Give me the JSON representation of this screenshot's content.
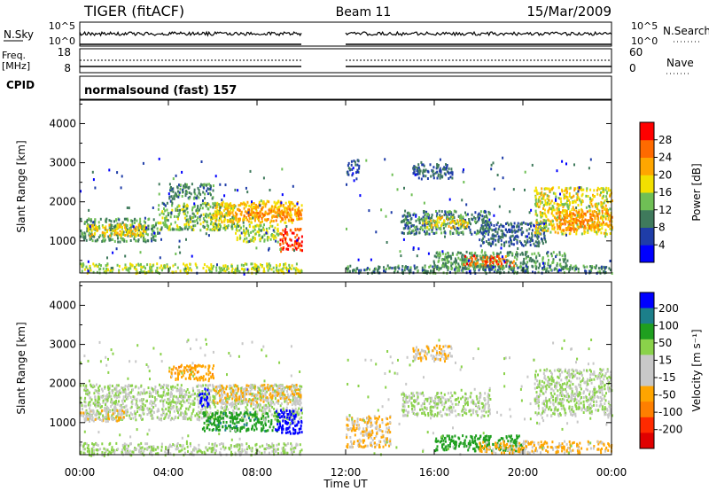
{
  "header": {
    "radar": "TIGER (fitACF)",
    "beam": "Beam 11",
    "date": "15/Mar/2009",
    "program": "normalsound (fast) 157"
  },
  "side_labels": {
    "nsky": "N.Sky",
    "nsearch": "N.Search",
    "freq_line1": "Freq.",
    "freq_line2": "[MHz]",
    "cpid": "CPID",
    "nave": "Nave",
    "nsky_top": "10^5",
    "nsky_bottom": "10^0",
    "freq_top": "18",
    "freq_bottom": "8",
    "nave_top": "60",
    "nave_bottom": "0"
  },
  "colors": {
    "power_scale": [
      "#0000ff",
      "#1f3da8",
      "#3f7a5c",
      "#6fbf55",
      "#f2e000",
      "#ffa600",
      "#ff6a00",
      "#ff0000"
    ],
    "velocity_scale": [
      "#0000ff",
      "#1c7f8a",
      "#1f9f1f",
      "#8ad24a",
      "#c8c8c8",
      "#c8c8c8",
      "#ffa500",
      "#ff7f00",
      "#ff2a00",
      "#e00000"
    ]
  },
  "chart_data": [
    {
      "type": "heatmap",
      "panel": "power",
      "ylabel": "Slant Range [km]",
      "ylim": [
        180,
        4600
      ],
      "yticks": [
        "1000",
        "2000",
        "3000",
        "4000"
      ],
      "yticks_values": [
        1000,
        2000,
        3000,
        4000
      ],
      "xlabel": "Time UT",
      "xticks": [
        "00:00",
        "04:00",
        "08:00",
        "12:00",
        "16:00",
        "20:00",
        "00:00"
      ],
      "xticks_hours": [
        0,
        4,
        8,
        12,
        16,
        20,
        24
      ],
      "data_gap_hours": [
        10,
        12
      ],
      "colorbar": {
        "label": "Power [dB]",
        "ticks": [
          "4",
          "8",
          "12",
          "16",
          "20",
          "24",
          "28"
        ],
        "tick_values": [
          4,
          8,
          12,
          16,
          20,
          24,
          28
        ],
        "range": [
          0,
          32
        ]
      },
      "regions": [
        {
          "t0": 0.0,
          "t1": 10.0,
          "r0": 200,
          "r1": 450,
          "level": 16
        },
        {
          "t0": 0.0,
          "t1": 3.5,
          "r0": 1000,
          "r1": 1600,
          "level": 12
        },
        {
          "t0": 0.3,
          "t1": 3.0,
          "r0": 1150,
          "r1": 1450,
          "level": 20
        },
        {
          "t0": 3.5,
          "t1": 7.0,
          "r0": 1300,
          "r1": 2000,
          "level": 14
        },
        {
          "t0": 6.0,
          "t1": 10.0,
          "r0": 1500,
          "r1": 2050,
          "level": 20
        },
        {
          "t0": 7.0,
          "t1": 10.0,
          "r0": 1550,
          "r1": 1850,
          "level": 24
        },
        {
          "t0": 9.0,
          "t1": 10.0,
          "r0": 750,
          "r1": 1350,
          "level": 28
        },
        {
          "t0": 7.0,
          "t1": 9.0,
          "r0": 1000,
          "r1": 1450,
          "level": 16
        },
        {
          "t0": 4.0,
          "t1": 6.0,
          "r0": 2100,
          "r1": 2500,
          "level": 10
        },
        {
          "t0": 12.0,
          "t1": 12.6,
          "r0": 2700,
          "r1": 3100,
          "level": 6
        },
        {
          "t0": 15.0,
          "t1": 16.8,
          "r0": 2600,
          "r1": 3000,
          "level": 8
        },
        {
          "t0": 14.5,
          "t1": 18.5,
          "r0": 1200,
          "r1": 1800,
          "level": 10
        },
        {
          "t0": 15.3,
          "t1": 17.5,
          "r0": 1350,
          "r1": 1650,
          "level": 18
        },
        {
          "t0": 16.0,
          "t1": 22.0,
          "r0": 300,
          "r1": 750,
          "level": 12
        },
        {
          "t0": 17.3,
          "t1": 19.6,
          "r0": 380,
          "r1": 650,
          "level": 26
        },
        {
          "t0": 18.0,
          "t1": 21.0,
          "r0": 900,
          "r1": 1500,
          "level": 8
        },
        {
          "t0": 20.5,
          "t1": 24.0,
          "r0": 1200,
          "r1": 2400,
          "level": 18
        },
        {
          "t0": 21.5,
          "t1": 24.0,
          "r0": 1300,
          "r1": 1800,
          "level": 24
        },
        {
          "t0": 12.0,
          "t1": 24.0,
          "r0": 200,
          "r1": 400,
          "level": 10
        }
      ]
    },
    {
      "type": "heatmap",
      "panel": "velocity",
      "ylabel": "Slant Range [km]",
      "ylim": [
        180,
        4600
      ],
      "yticks": [
        "1000",
        "2000",
        "3000",
        "4000"
      ],
      "yticks_values": [
        1000,
        2000,
        3000,
        4000
      ],
      "xlabel": "Time UT",
      "xticks": [
        "00:00",
        "04:00",
        "08:00",
        "12:00",
        "16:00",
        "20:00",
        "00:00"
      ],
      "xticks_hours": [
        0,
        4,
        8,
        12,
        16,
        20,
        24
      ],
      "data_gap_hours": [
        10,
        12
      ],
      "colorbar": {
        "label": "Velocity [m s⁻¹]",
        "ticks": [
          "200",
          "100",
          "50",
          "15",
          "-15",
          "-50",
          "-100",
          "-200"
        ],
        "tick_values": [
          200,
          100,
          50,
          15,
          -15,
          -50,
          -100,
          -200
        ]
      },
      "regions": [
        {
          "t0": 0.0,
          "t1": 10.0,
          "r0": 200,
          "r1": 500,
          "level": 0
        },
        {
          "t0": 0.0,
          "t1": 10.0,
          "r0": 1100,
          "r1": 2000,
          "level": 0
        },
        {
          "t0": 0.0,
          "t1": 2.0,
          "r0": 1050,
          "r1": 1350,
          "level": -20
        },
        {
          "t0": 6.0,
          "t1": 10.0,
          "r0": 1500,
          "r1": 2000,
          "level": -30
        },
        {
          "t0": 5.5,
          "t1": 9.0,
          "r0": 800,
          "r1": 1300,
          "level": 60
        },
        {
          "t0": 8.8,
          "t1": 10.0,
          "r0": 750,
          "r1": 1350,
          "level": 200
        },
        {
          "t0": 5.3,
          "t1": 5.8,
          "r0": 1450,
          "r1": 1900,
          "level": 200
        },
        {
          "t0": 4.0,
          "t1": 6.0,
          "r0": 2100,
          "r1": 2500,
          "level": -60
        },
        {
          "t0": 14.5,
          "t1": 18.5,
          "r0": 1200,
          "r1": 1800,
          "level": 0
        },
        {
          "t0": 15.0,
          "t1": 16.8,
          "r0": 2600,
          "r1": 3000,
          "level": -30
        },
        {
          "t0": 16.0,
          "t1": 20.0,
          "r0": 300,
          "r1": 700,
          "level": 50
        },
        {
          "t0": 18.0,
          "t1": 24.0,
          "r0": 250,
          "r1": 550,
          "level": -40
        },
        {
          "t0": 20.5,
          "t1": 24.0,
          "r0": 1200,
          "r1": 2400,
          "level": 0
        },
        {
          "t0": 12.0,
          "t1": 14.0,
          "r0": 400,
          "r1": 1200,
          "level": -30
        }
      ]
    }
  ]
}
